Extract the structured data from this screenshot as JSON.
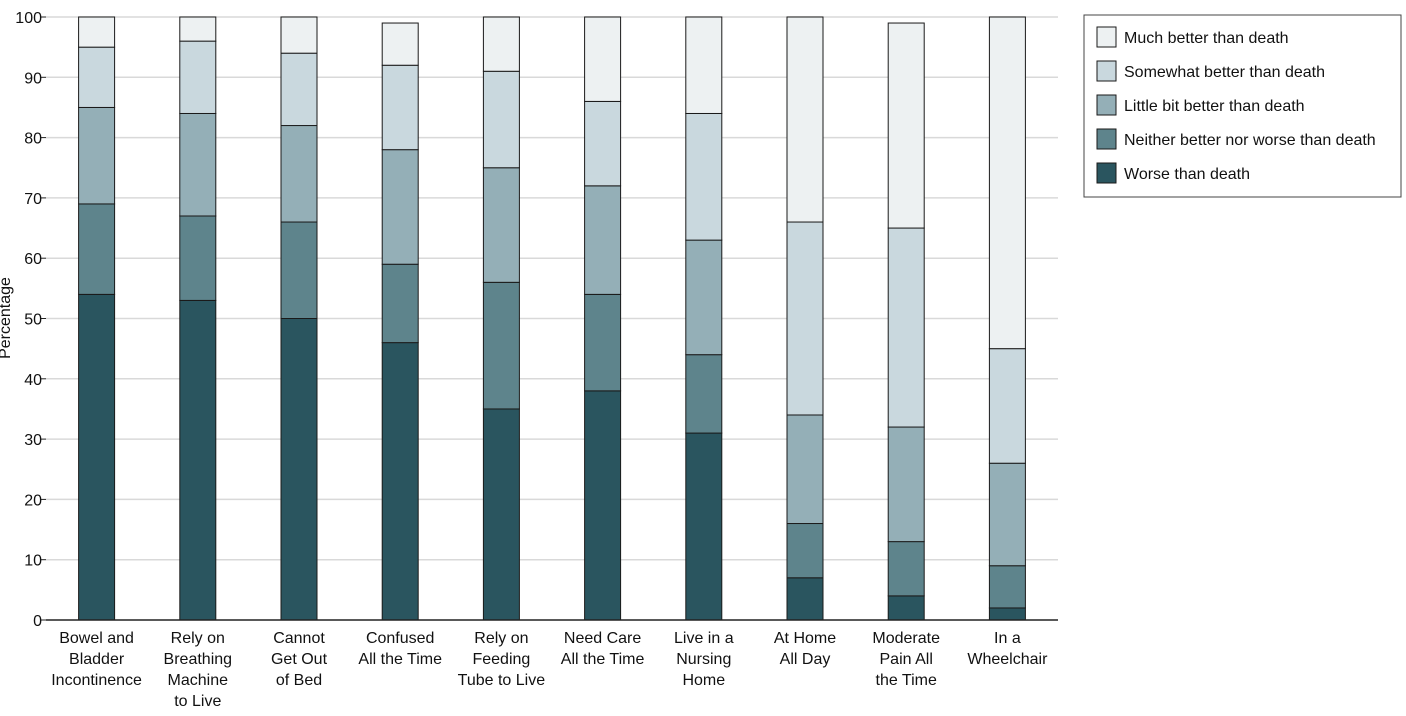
{
  "chart_data": {
    "type": "bar",
    "stacked": true,
    "ylabel": "Percentage",
    "xlabel": "",
    "ylim": [
      0,
      100
    ],
    "yticks": [
      0,
      10,
      20,
      30,
      40,
      50,
      60,
      70,
      80,
      90,
      100
    ],
    "grid": true,
    "legend_position": "top-right",
    "categories": [
      [
        "Bowel and",
        "Bladder",
        "Incontinence"
      ],
      [
        "Rely on",
        "Breathing",
        "Machine",
        "to Live"
      ],
      [
        "Cannot",
        "Get Out",
        "of Bed"
      ],
      [
        "Confused",
        "All the Time"
      ],
      [
        "Rely on",
        "Feeding",
        "Tube to Live"
      ],
      [
        "Need Care",
        "All the Time"
      ],
      [
        "Live in a",
        "Nursing",
        "Home"
      ],
      [
        "At Home",
        "All Day"
      ],
      [
        "Moderate",
        "Pain All",
        "the Time"
      ],
      [
        "In a",
        "Wheelchair"
      ]
    ],
    "series": [
      {
        "name": "Worse than death",
        "color": "#2a555f",
        "values": [
          54,
          53,
          50,
          46,
          35,
          38,
          31,
          7,
          4,
          2
        ]
      },
      {
        "name": "Neither better nor worse than death",
        "color": "#5e848c",
        "values": [
          15,
          14,
          16,
          13,
          21,
          16,
          13,
          9,
          9,
          7
        ]
      },
      {
        "name": "Little bit better than death",
        "color": "#94afb7",
        "values": [
          16,
          17,
          16,
          19,
          19,
          18,
          19,
          18,
          19,
          17
        ]
      },
      {
        "name": "Somewhat better than death",
        "color": "#c9d8de",
        "values": [
          10,
          12,
          12,
          14,
          16,
          14,
          21,
          32,
          33,
          19
        ]
      },
      {
        "name": "Much better than death",
        "color": "#edf1f2",
        "values": [
          5,
          4,
          6,
          7,
          9,
          14,
          16,
          34,
          34,
          55
        ]
      }
    ],
    "legend_order": [
      4,
      3,
      2,
      1,
      0
    ]
  }
}
